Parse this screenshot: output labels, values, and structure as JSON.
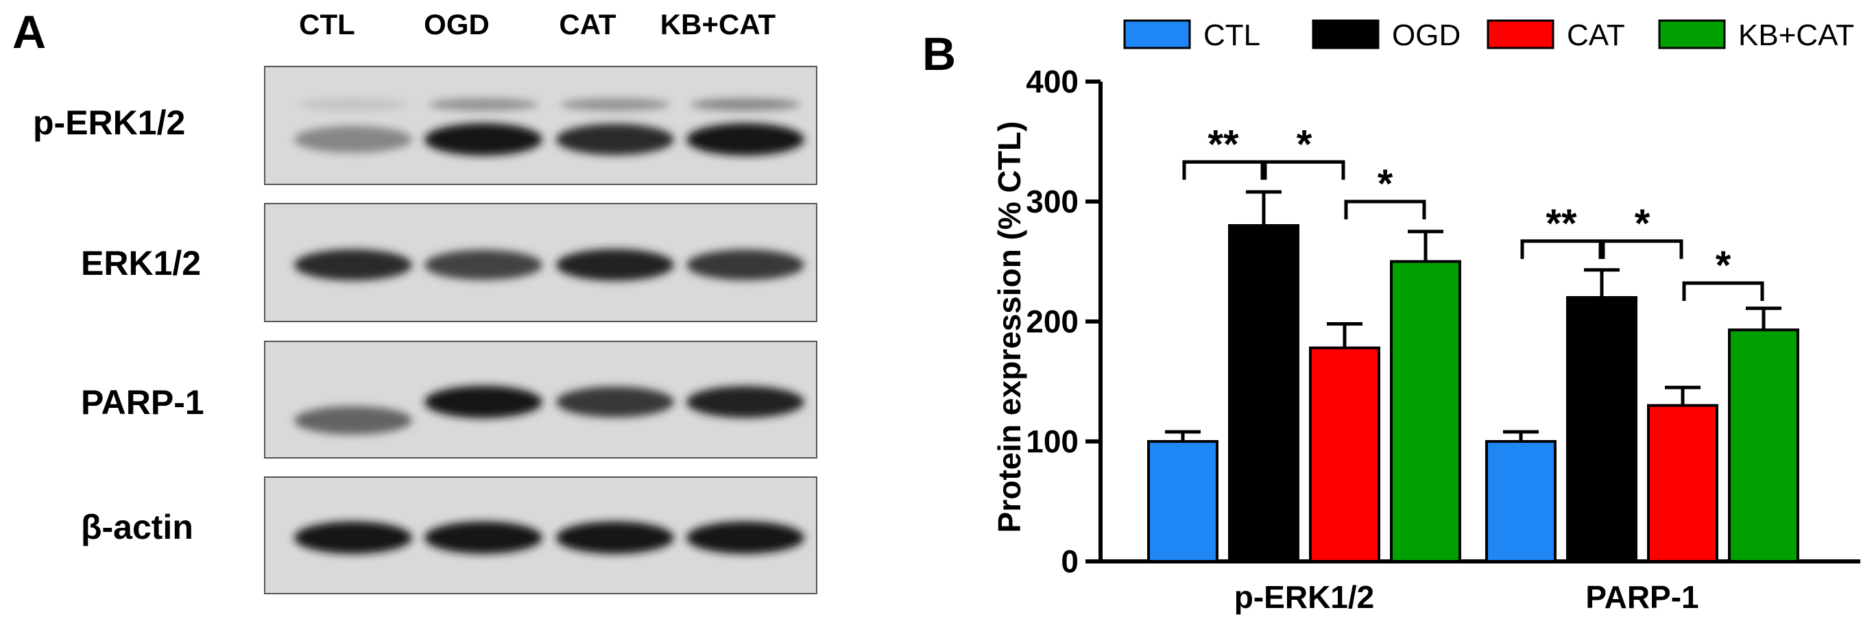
{
  "panels": {
    "a": "A",
    "b": "B"
  },
  "western_blot": {
    "lanes": [
      "CTL",
      "OGD",
      "CAT",
      "KB+CAT"
    ],
    "rows": [
      {
        "label": "p-ERK1/2",
        "band_intensity": [
          0.45,
          0.95,
          0.85,
          0.95
        ],
        "upper_band": [
          0.2,
          0.45,
          0.45,
          0.5
        ]
      },
      {
        "label": "ERK1/2",
        "band_intensity": [
          0.85,
          0.75,
          0.9,
          0.8
        ],
        "upper_band": [
          0,
          0,
          0,
          0
        ]
      },
      {
        "label": "PARP-1",
        "band_intensity": [
          0.6,
          0.95,
          0.8,
          0.9
        ],
        "upper_band": [
          0,
          0,
          0,
          0
        ]
      },
      {
        "label": "β-actin",
        "band_intensity": [
          0.95,
          0.95,
          0.95,
          0.95
        ],
        "upper_band": [
          0,
          0,
          0,
          0
        ]
      }
    ]
  },
  "chart_data": {
    "type": "bar",
    "categories": [
      "p-ERK1/2",
      "PARP-1"
    ],
    "series": [
      {
        "name": "CTL",
        "color": "#1f86f5",
        "values": [
          100,
          100
        ],
        "errors": [
          8,
          8
        ]
      },
      {
        "name": "OGD",
        "color": "#000000",
        "values": [
          280,
          220
        ],
        "errors": [
          28,
          23
        ]
      },
      {
        "name": "CAT",
        "color": "#ff0000",
        "values": [
          178,
          130
        ],
        "errors": [
          20,
          15
        ]
      },
      {
        "name": "KB+CAT",
        "color": "#00a000",
        "values": [
          250,
          193
        ],
        "errors": [
          25,
          18
        ]
      }
    ],
    "ylabel": "Protein expression (% CTL)",
    "xlabel": "",
    "ylim": [
      0,
      400
    ],
    "yticks": [
      0,
      100,
      200,
      300,
      400
    ],
    "legend_position": "top",
    "significance": [
      {
        "category": 0,
        "from": 0,
        "to": 1,
        "label": "**",
        "y": 333
      },
      {
        "category": 0,
        "from": 1,
        "to": 2,
        "label": "*",
        "y": 333
      },
      {
        "category": 0,
        "from": 2,
        "to": 3,
        "label": "*",
        "y": 300
      },
      {
        "category": 1,
        "from": 0,
        "to": 1,
        "label": "**",
        "y": 267
      },
      {
        "category": 1,
        "from": 1,
        "to": 2,
        "label": "*",
        "y": 267
      },
      {
        "category": 1,
        "from": 2,
        "to": 3,
        "label": "*",
        "y": 232
      }
    ]
  }
}
